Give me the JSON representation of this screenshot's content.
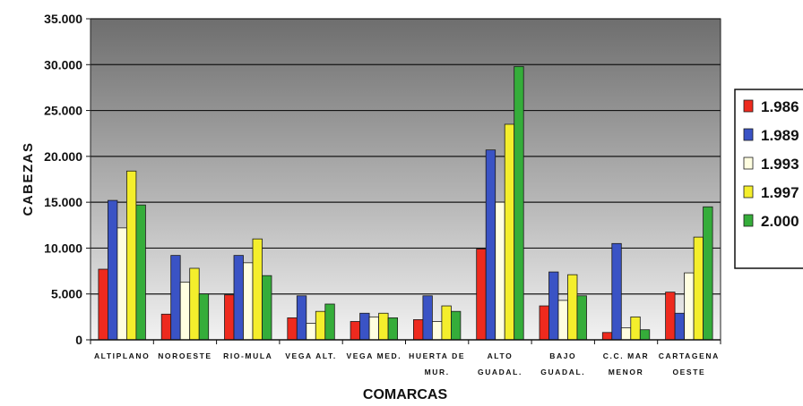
{
  "chart_data": {
    "type": "bar",
    "xlabel": "COMARCAS",
    "ylabel": "CABEZAS",
    "ylim": [
      0,
      35000
    ],
    "y_ticks": [
      "0",
      "5.000",
      "10.000",
      "15.000",
      "20.000",
      "25.000",
      "30.000",
      "35.000"
    ],
    "grid": true,
    "legend_position": "right",
    "categories": [
      [
        "ALTIPLANO"
      ],
      [
        "NOROESTE"
      ],
      [
        "RIO-MULA"
      ],
      [
        "VEGA ALT."
      ],
      [
        "VEGA MED."
      ],
      [
        "HUERTA DE",
        "MUR."
      ],
      [
        "ALTO",
        "GUADAL."
      ],
      [
        "BAJO",
        "GUADAL."
      ],
      [
        "C.C. MAR",
        "MENOR"
      ],
      [
        "CARTAGENA",
        "OESTE"
      ]
    ],
    "series": [
      {
        "name": "1.986",
        "color": "#ee2a1e",
        "values": [
          7700,
          2800,
          4900,
          2400,
          2000,
          2200,
          9900,
          3700,
          800,
          5200
        ]
      },
      {
        "name": "1.989",
        "color": "#3a53c5",
        "values": [
          15200,
          9200,
          9200,
          4800,
          2900,
          4800,
          20700,
          7400,
          10500,
          2900
        ]
      },
      {
        "name": "1.993",
        "color": "#fffee0",
        "values": [
          12200,
          6300,
          8400,
          1800,
          2500,
          2000,
          15000,
          4300,
          1300,
          7300
        ]
      },
      {
        "name": "1.997",
        "color": "#f4ee2c",
        "values": [
          18400,
          7800,
          11000,
          3100,
          2900,
          3700,
          23500,
          7100,
          2500,
          11200
        ]
      },
      {
        "name": "2.000",
        "color": "#35ad3a",
        "values": [
          14700,
          5000,
          7000,
          3900,
          2400,
          3100,
          29800,
          4800,
          1100,
          14500
        ]
      }
    ]
  }
}
